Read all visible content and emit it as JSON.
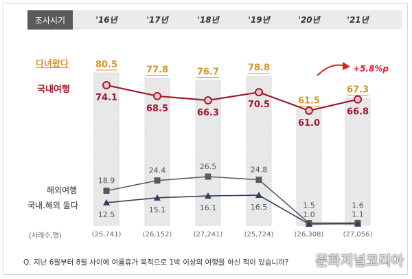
{
  "header": {
    "period_label": "조사시기"
  },
  "legend": {
    "visited": "다녀왔다",
    "domestic": "국내여행",
    "overseas": "해외여행",
    "both": "국내.해외 둘다",
    "sample": "(사례수,명)"
  },
  "annotation": {
    "growth": "+5.8%p"
  },
  "question": "Q. 지난 6월부터 8월 사이에 여름휴가 목적으로 1박 이상의 여행을 하신 적이 있습니까?",
  "watermark": "문화저널코리아",
  "colors": {
    "bar": "#e2e2e2",
    "visited": "#d4942a",
    "domestic": "#a01a2e",
    "overseas": "#5a5a5a",
    "both": "#2f3f5a",
    "arrow": "#e0202a"
  },
  "chart_data": {
    "type": "bar",
    "categories": [
      "'16년",
      "'17년",
      "'18년",
      "'19년",
      "'20년",
      "'21년"
    ],
    "sample_sizes": [
      "(25,741)",
      "(26,152)",
      "(27,241)",
      "(25,724)",
      "(26,308)",
      "(27,056)"
    ],
    "series": [
      {
        "name": "다녀왔다",
        "chart_type": "bar",
        "values": [
          80.5,
          77.8,
          76.7,
          78.8,
          61.5,
          67.3
        ]
      },
      {
        "name": "국내여행",
        "chart_type": "line",
        "values": [
          74.1,
          68.5,
          66.3,
          70.5,
          61.0,
          66.8
        ]
      },
      {
        "name": "해외여행",
        "chart_type": "line",
        "marker": "square",
        "values": [
          18.9,
          24.4,
          26.5,
          24.8,
          1.5,
          1.6
        ]
      },
      {
        "name": "국내.해외 둘다",
        "chart_type": "line",
        "marker": "triangle",
        "values": [
          12.5,
          15.1,
          16.1,
          16.5,
          1.0,
          1.1
        ]
      }
    ],
    "annotation": "+5.8%p",
    "ylim": [
      0,
      90
    ],
    "grid": false,
    "legend": "left"
  }
}
